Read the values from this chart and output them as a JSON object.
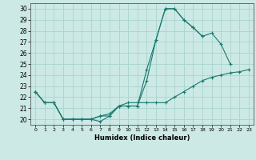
{
  "xlabel": "Humidex (Indice chaleur)",
  "bg_color": "#cce9e5",
  "line_color": "#1a7a6e",
  "grid_color": "#aad4ce",
  "x": [
    0,
    1,
    2,
    3,
    4,
    5,
    6,
    7,
    8,
    9,
    10,
    11,
    12,
    13,
    14,
    15,
    16,
    17,
    18,
    19,
    20,
    21,
    22,
    23
  ],
  "series1": [
    22.5,
    21.5,
    21.5,
    20.0,
    20.0,
    20.0,
    20.0,
    19.8,
    20.3,
    21.2,
    21.2,
    21.2,
    23.5,
    27.2,
    30.0,
    30.0,
    29.0,
    28.3,
    27.5,
    27.8,
    26.8,
    25.0,
    null,
    null
  ],
  "series2": [
    22.5,
    21.5,
    21.5,
    20.0,
    20.0,
    20.0,
    20.0,
    20.3,
    20.3,
    21.2,
    21.2,
    21.2,
    24.5,
    27.2,
    30.0,
    30.0,
    29.0,
    28.3,
    27.5,
    null,
    null,
    null,
    null,
    null
  ],
  "series3": [
    22.5,
    21.5,
    21.5,
    20.0,
    20.0,
    20.0,
    20.0,
    20.3,
    20.5,
    21.2,
    21.5,
    21.5,
    21.5,
    21.5,
    21.5,
    22.0,
    22.5,
    23.0,
    23.5,
    23.8,
    24.0,
    24.2,
    24.3,
    24.5
  ],
  "xlim": [
    -0.5,
    23.5
  ],
  "ylim": [
    19.5,
    30.5
  ],
  "yticks": [
    20,
    21,
    22,
    23,
    24,
    25,
    26,
    27,
    28,
    29,
    30
  ],
  "xticks": [
    0,
    1,
    2,
    3,
    4,
    5,
    6,
    7,
    8,
    9,
    10,
    11,
    12,
    13,
    14,
    15,
    16,
    17,
    18,
    19,
    20,
    21,
    22,
    23
  ]
}
